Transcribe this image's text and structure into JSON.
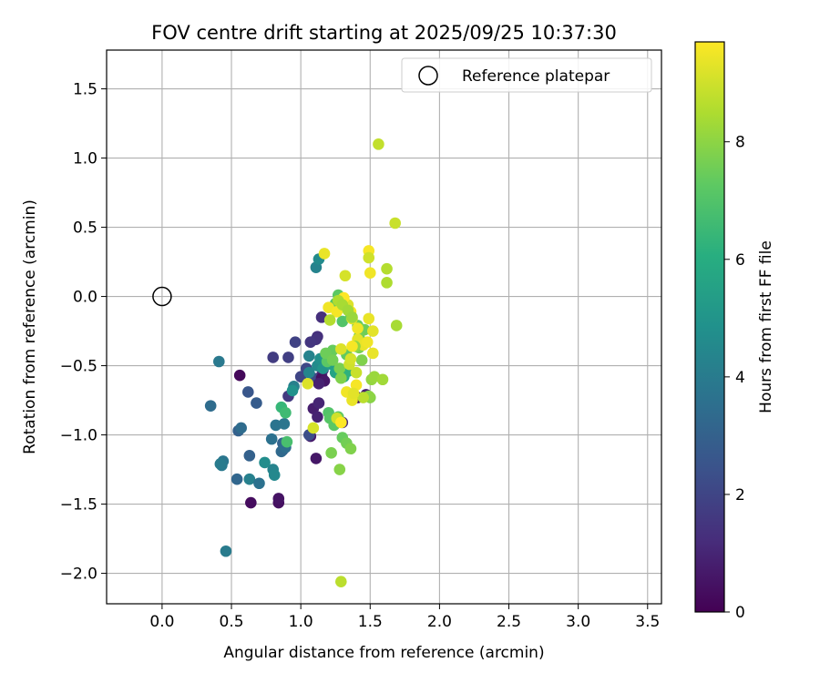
{
  "chart_data": {
    "type": "scatter",
    "title": "FOV centre drift starting at 2025/09/25 10:37:30",
    "xlabel": "Angular distance from reference (arcmin)",
    "ylabel": "Rotation from reference (arcmin)",
    "xlim": [
      -0.4,
      3.6
    ],
    "ylim": [
      -2.22,
      1.78
    ],
    "xticks": [
      0.0,
      0.5,
      1.0,
      1.5,
      2.0,
      2.5,
      3.0,
      3.5
    ],
    "xtick_labels": [
      "0.0",
      "0.5",
      "1.0",
      "1.5",
      "2.0",
      "2.5",
      "3.0",
      "3.5"
    ],
    "yticks": [
      1.5,
      1.0,
      0.5,
      0.0,
      -0.5,
      -1.0,
      -1.5,
      -2.0
    ],
    "ytick_labels": [
      "1.5",
      "1.0",
      "0.5",
      "0.0",
      "−0.5",
      "−1.0",
      "−1.5",
      "−2.0"
    ],
    "grid": true,
    "legend": {
      "position": "top-right",
      "entries": [
        "Reference platepar"
      ]
    },
    "reference_point": {
      "x": 0.0,
      "y": 0.0,
      "label": "Reference platepar"
    },
    "colorbar": {
      "label": "Hours from first FF file",
      "range": [
        0,
        9.7
      ],
      "colormap": "viridis",
      "ticks": [
        0,
        2,
        4,
        6,
        8
      ],
      "tick_labels": [
        "0",
        "2",
        "4",
        "6",
        "8"
      ]
    },
    "series": [
      {
        "x": [
          0.56,
          0.64,
          0.84,
          0.84,
          1.11,
          1.07,
          1.09,
          1.12,
          1.13,
          1.15,
          1.16,
          1.12,
          1.11,
          1.07,
          0.91,
          0.8,
          0.91,
          0.96,
          1.0,
          1.04,
          1.09,
          1.15,
          1.17,
          1.13,
          1.15,
          1.3,
          1.41,
          1.47,
          0.87,
          1.06,
          0.62,
          0.68,
          0.55,
          0.54,
          0.57,
          0.63,
          0.87,
          0.86,
          0.89,
          0.79,
          0.82,
          0.88,
          0.41,
          0.35,
          0.44,
          0.43,
          0.42,
          0.46,
          0.63,
          0.8,
          0.81,
          0.95,
          1.06,
          1.06,
          1.12,
          1.14,
          1.16,
          0.7,
          0.74,
          0.94,
          1.11,
          1.13,
          1.18,
          1.22,
          1.25,
          1.28,
          1.31,
          1.34,
          0.86,
          0.89,
          0.9,
          1.2,
          1.21,
          1.24,
          1.27,
          1.3,
          1.33,
          1.36,
          1.22,
          1.28,
          1.19,
          1.33,
          1.23,
          1.18,
          1.23,
          1.28,
          1.29,
          1.3,
          1.25,
          1.27,
          1.36,
          1.41,
          1.46,
          1.42,
          1.42,
          1.44,
          1.5,
          1.49,
          1.51,
          1.53,
          1.59,
          1.69,
          1.62,
          1.62,
          1.45,
          1.38,
          1.4,
          1.35,
          1.36,
          1.29,
          1.41,
          1.49,
          1.5,
          1.49,
          1.49,
          1.32,
          1.34,
          1.37,
          1.17,
          1.2,
          1.26,
          1.31,
          1.36,
          1.41,
          1.45,
          1.52,
          1.68,
          1.56,
          1.29,
          1.21,
          1.27,
          1.3,
          1.34,
          1.37,
          1.39,
          1.4,
          1.33,
          1.37,
          1.38,
          1.05,
          1.09,
          1.26,
          1.29,
          1.37,
          1.48,
          1.52
        ],
        "y": [
          -0.57,
          -1.49,
          -1.49,
          -1.46,
          -1.17,
          -1.01,
          -0.81,
          -0.87,
          -0.77,
          -0.57,
          -0.53,
          -0.29,
          -0.31,
          -0.33,
          -0.72,
          -0.44,
          -0.44,
          -0.33,
          -0.58,
          -0.52,
          -0.59,
          -0.59,
          -0.61,
          -0.63,
          -0.15,
          -0.91,
          -0.73,
          -0.71,
          -1.11,
          -1.0,
          -0.69,
          -0.77,
          -0.97,
          -1.32,
          -0.95,
          -1.15,
          -1.06,
          -1.12,
          -1.09,
          -1.03,
          -0.93,
          -0.92,
          -0.47,
          -0.79,
          -1.19,
          -1.22,
          -1.21,
          -1.84,
          -1.32,
          -1.25,
          -1.29,
          -0.65,
          -0.43,
          -0.55,
          -0.5,
          -0.45,
          -0.52,
          -1.35,
          -1.2,
          -0.68,
          0.21,
          0.27,
          -0.45,
          -0.49,
          -0.55,
          -0.53,
          -0.58,
          -0.54,
          -0.8,
          -0.84,
          -1.05,
          -0.84,
          -0.88,
          -0.93,
          -0.87,
          -1.02,
          -1.06,
          -1.1,
          -1.13,
          -1.25,
          -0.47,
          -0.42,
          -0.39,
          -0.41,
          -0.46,
          -0.52,
          -0.59,
          -0.18,
          -0.05,
          0.01,
          -0.15,
          -0.21,
          -0.24,
          -0.29,
          -0.37,
          -0.46,
          -0.73,
          -0.72,
          -0.6,
          -0.58,
          -0.6,
          -0.21,
          0.1,
          0.2,
          -0.73,
          -0.71,
          -0.55,
          -0.49,
          -0.45,
          -0.38,
          -0.31,
          -0.16,
          0.17,
          0.33,
          0.28,
          0.15,
          -0.06,
          -0.16,
          0.31,
          -0.08,
          -0.11,
          -0.01,
          -0.11,
          -0.23,
          -0.35,
          -0.25,
          0.53,
          1.1,
          -2.06,
          -0.17,
          -0.03,
          -0.06,
          -0.1,
          -0.15,
          -0.36,
          -0.64,
          -0.69,
          -0.75,
          -0.7,
          -0.63,
          -0.95,
          -0.88,
          -0.91,
          -0.36,
          -0.33,
          -0.41
        ],
        "hours": [
          0.2,
          0.3,
          0.4,
          0.5,
          0.6,
          0.7,
          0.8,
          0.9,
          1.0,
          1.1,
          1.2,
          1.3,
          1.4,
          1.5,
          1.6,
          1.7,
          1.8,
          1.9,
          2.0,
          2.1,
          2.2,
          0.4,
          0.6,
          0.9,
          1.3,
          1.1,
          0.5,
          0.8,
          2.4,
          2.3,
          2.6,
          2.8,
          3.0,
          3.2,
          3.4,
          3.0,
          3.1,
          3.3,
          3.5,
          3.6,
          3.7,
          3.8,
          3.9,
          3.4,
          3.8,
          3.9,
          4.0,
          4.0,
          4.2,
          4.3,
          4.5,
          4.2,
          4.3,
          4.4,
          4.6,
          4.8,
          5.0,
          3.6,
          4.7,
          4.9,
          4.3,
          4.6,
          5.2,
          5.4,
          5.6,
          5.8,
          6.0,
          6.2,
          6.4,
          6.6,
          6.8,
          7.0,
          7.1,
          7.2,
          7.3,
          7.4,
          7.6,
          7.8,
          7.7,
          7.9,
          7.2,
          7.3,
          7.4,
          7.5,
          7.6,
          7.7,
          7.8,
          7.0,
          7.1,
          7.2,
          7.3,
          7.4,
          7.5,
          7.6,
          7.7,
          7.8,
          7.9,
          8.0,
          8.1,
          8.2,
          8.3,
          8.4,
          8.5,
          8.6,
          8.7,
          8.8,
          8.9,
          9.0,
          9.1,
          9.2,
          9.3,
          9.4,
          9.5,
          9.6,
          9.0,
          9.1,
          9.2,
          9.3,
          9.4,
          9.5,
          9.6,
          9.7,
          9.6,
          9.5,
          9.4,
          9.3,
          8.9,
          8.8,
          8.7,
          8.6,
          8.5,
          8.4,
          8.3,
          8.2,
          8.1,
          9.6,
          9.5,
          9.4,
          9.3,
          9.2,
          9.1,
          9.0,
          9.7,
          9.6,
          9.5,
          9.4
        ]
      }
    ]
  }
}
